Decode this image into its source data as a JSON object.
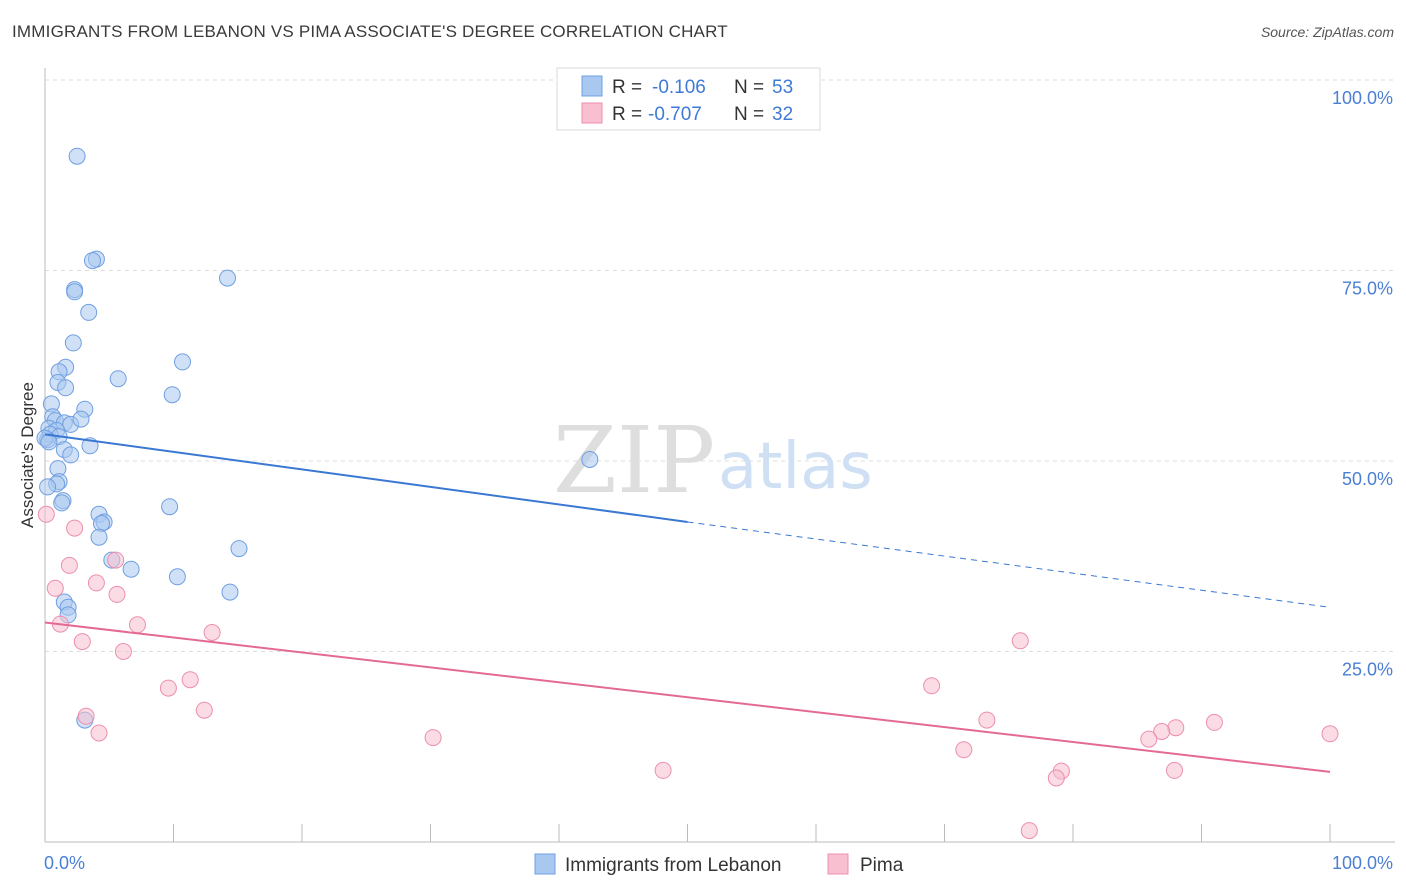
{
  "title": "IMMIGRANTS FROM LEBANON VS PIMA ASSOCIATE'S DEGREE CORRELATION CHART",
  "source": "Source: ZipAtlas.com",
  "watermark": {
    "zip": "ZIP",
    "atlas": "atlas"
  },
  "colors": {
    "blue_fill": "#a9c8f0",
    "blue_stroke": "#6f9fe0",
    "blue_line": "#3a78d4",
    "pink_fill": "#f7bfd0",
    "pink_stroke": "#ec8fae",
    "pink_line": "#e46a95",
    "tick_text": "#4a7fd4",
    "grid": "#dcdcdc"
  },
  "legend_top": {
    "r_label": "R =",
    "n_label": "N =",
    "rows": [
      {
        "swatch": "blue",
        "r": "-0.106",
        "n": "53"
      },
      {
        "swatch": "pink",
        "r": "-0.707",
        "n": "32"
      }
    ]
  },
  "bottom_legend": [
    {
      "swatch": "blue",
      "label": "Immigrants from Lebanon"
    },
    {
      "swatch": "pink",
      "label": "Pima"
    }
  ],
  "chart_data": {
    "type": "scatter",
    "title": "IMMIGRANTS FROM LEBANON VS PIMA ASSOCIATE'S DEGREE CORRELATION CHART",
    "xlabel": "",
    "ylabel": "Associate's Degree",
    "xlim": [
      0,
      100
    ],
    "ylim": [
      0,
      100
    ],
    "x_tick_labels": [
      "0.0%",
      "100.0%"
    ],
    "y_tick_labels": [
      "100.0%",
      "75.0%",
      "50.0%",
      "25.0%"
    ],
    "y_ticks": [
      100,
      75,
      50,
      25
    ],
    "series": [
      {
        "name": "Immigrants from Lebanon",
        "color": "blue",
        "r": -0.106,
        "n": 53,
        "trend": {
          "x0": 0,
          "y0": 53.5,
          "x1": 50,
          "y1": 42.0,
          "dash_to_x": 100,
          "dash_to_y": 30.8
        },
        "points": [
          [
            2.5,
            90.0
          ],
          [
            4.0,
            76.5
          ],
          [
            3.7,
            76.3
          ],
          [
            14.2,
            74.0
          ],
          [
            2.3,
            72.5
          ],
          [
            2.3,
            72.2
          ],
          [
            3.4,
            69.5
          ],
          [
            2.2,
            65.5
          ],
          [
            1.6,
            62.3
          ],
          [
            10.7,
            63.0
          ],
          [
            1.1,
            61.7
          ],
          [
            5.7,
            60.8
          ],
          [
            1.0,
            60.3
          ],
          [
            1.6,
            59.6
          ],
          [
            9.9,
            58.7
          ],
          [
            0.5,
            57.5
          ],
          [
            3.1,
            56.8
          ],
          [
            0.6,
            55.8
          ],
          [
            0.8,
            55.3
          ],
          [
            1.5,
            55.0
          ],
          [
            2.0,
            54.8
          ],
          [
            0.3,
            54.3
          ],
          [
            0.9,
            54.0
          ],
          [
            0.4,
            53.5
          ],
          [
            1.1,
            53.2
          ],
          [
            0.2,
            52.8
          ],
          [
            3.5,
            52.0
          ],
          [
            1.5,
            51.5
          ],
          [
            2.0,
            50.8
          ],
          [
            42.4,
            50.2
          ],
          [
            1.0,
            49.0
          ],
          [
            1.1,
            47.3
          ],
          [
            0.9,
            47.0
          ],
          [
            0.2,
            46.6
          ],
          [
            1.4,
            44.8
          ],
          [
            1.3,
            44.5
          ],
          [
            9.7,
            44.0
          ],
          [
            4.2,
            43.0
          ],
          [
            4.6,
            42.0
          ],
          [
            4.4,
            41.8
          ],
          [
            4.2,
            40.0
          ],
          [
            15.1,
            38.5
          ],
          [
            5.2,
            37.0
          ],
          [
            6.7,
            35.8
          ],
          [
            10.3,
            34.8
          ],
          [
            14.4,
            32.8
          ],
          [
            1.5,
            31.5
          ],
          [
            1.8,
            30.8
          ],
          [
            1.8,
            29.8
          ],
          [
            3.1,
            16.0
          ],
          [
            0.0,
            53.0
          ],
          [
            0.3,
            52.5
          ],
          [
            2.8,
            55.5
          ]
        ]
      },
      {
        "name": "Pima",
        "color": "pink",
        "r": -0.707,
        "n": 32,
        "trend": {
          "x0": 0,
          "y0": 28.8,
          "x1": 100,
          "y1": 9.2
        },
        "points": [
          [
            0.1,
            43.0
          ],
          [
            2.3,
            41.2
          ],
          [
            1.9,
            36.3
          ],
          [
            4.0,
            34.0
          ],
          [
            0.8,
            33.3
          ],
          [
            5.5,
            37.0
          ],
          [
            5.6,
            32.5
          ],
          [
            7.2,
            28.5
          ],
          [
            1.2,
            28.6
          ],
          [
            13.0,
            27.5
          ],
          [
            2.9,
            26.3
          ],
          [
            6.1,
            25.0
          ],
          [
            75.9,
            26.4
          ],
          [
            11.3,
            21.3
          ],
          [
            9.6,
            20.2
          ],
          [
            69.0,
            20.5
          ],
          [
            12.4,
            17.3
          ],
          [
            3.2,
            16.5
          ],
          [
            73.3,
            16.0
          ],
          [
            91.0,
            15.7
          ],
          [
            88.0,
            15.0
          ],
          [
            86.9,
            14.5
          ],
          [
            4.2,
            14.3
          ],
          [
            30.2,
            13.7
          ],
          [
            85.9,
            13.5
          ],
          [
            100.0,
            14.2
          ],
          [
            71.5,
            12.1
          ],
          [
            48.1,
            9.4
          ],
          [
            79.1,
            9.3
          ],
          [
            87.9,
            9.4
          ],
          [
            78.7,
            8.4
          ],
          [
            76.6,
            1.5
          ]
        ]
      }
    ]
  }
}
